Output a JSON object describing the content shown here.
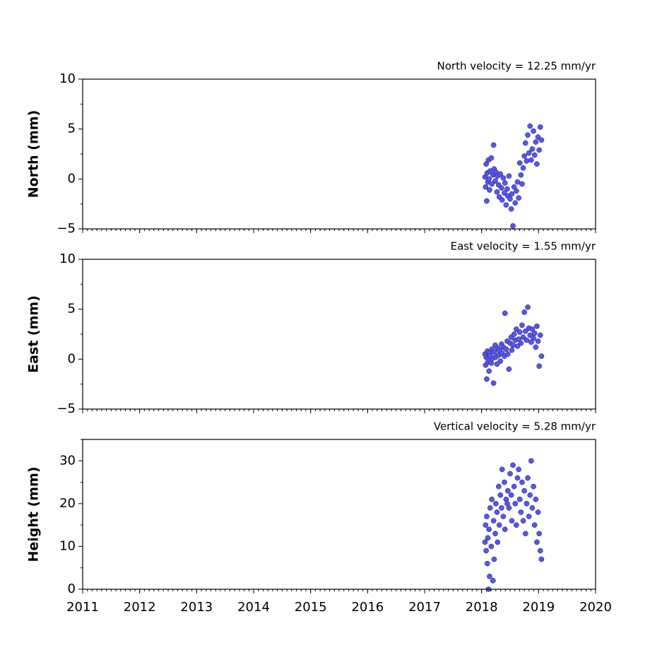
{
  "chart_data": [
    {
      "type": "scatter",
      "title": "North velocity = 12.25 mm/yr",
      "ylabel": "North (mm)",
      "color": "#5555f5",
      "x": [
        2018.06,
        2018.07,
        2018.08,
        2018.09,
        2018.1,
        2018.11,
        2018.12,
        2018.13,
        2018.14,
        2018.15,
        2018.17,
        2018.18,
        2018.2,
        2018.21,
        2018.22,
        2018.24,
        2018.25,
        2018.27,
        2018.28,
        2018.3,
        2018.31,
        2018.33,
        2018.35,
        2018.36,
        2018.38,
        2018.4,
        2018.41,
        2018.43,
        2018.45,
        2018.46,
        2018.48,
        2018.5,
        2018.52,
        2018.53,
        2018.55,
        2018.57,
        2018.59,
        2018.61,
        2018.63,
        2018.65,
        2018.67,
        2018.69,
        2018.71,
        2018.73,
        2018.75,
        2018.77,
        2018.79,
        2018.81,
        2018.83,
        2018.85,
        2018.87,
        2018.89,
        2018.91,
        2018.93,
        2018.95,
        2018.97,
        2018.99,
        2019.01,
        2019.03,
        2019.05
      ],
      "y": [
        0.2,
        -0.8,
        1.5,
        -2.2,
        0.6,
        -0.3,
        1.9,
        0.0,
        -1.1,
        0.8,
        2.1,
        -0.5,
        0.4,
        3.4,
        1.0,
        -0.2,
        0.7,
        -1.3,
        0.3,
        -0.6,
        -1.8,
        0.5,
        -0.9,
        -2.1,
        0.1,
        -1.4,
        -0.4,
        -2.6,
        -1.0,
        -1.7,
        0.3,
        -2.0,
        -3.0,
        -1.5,
        -4.7,
        -0.8,
        -2.4,
        -1.2,
        -0.3,
        -1.9,
        1.6,
        0.4,
        -0.5,
        1.1,
        2.3,
        3.6,
        1.8,
        4.4,
        2.6,
        5.3,
        1.9,
        3.0,
        4.8,
        2.4,
        3.7,
        1.5,
        4.2,
        2.9,
        5.2,
        3.9
      ],
      "xlim": [
        2011,
        2020
      ],
      "xticks": [
        2011,
        2012,
        2013,
        2014,
        2015,
        2016,
        2017,
        2018,
        2019,
        2020
      ],
      "ylim": [
        -5,
        10
      ],
      "yticks": [
        {
          "value": -5,
          "label": "−5"
        },
        0,
        5,
        10
      ]
    },
    {
      "type": "scatter",
      "title": "East velocity = 1.55 mm/yr",
      "ylabel": "East (mm)",
      "color": "#5555f5",
      "x": [
        2018.06,
        2018.07,
        2018.08,
        2018.09,
        2018.1,
        2018.11,
        2018.12,
        2018.13,
        2018.14,
        2018.15,
        2018.17,
        2018.18,
        2018.2,
        2018.21,
        2018.22,
        2018.24,
        2018.25,
        2018.27,
        2018.28,
        2018.3,
        2018.31,
        2018.33,
        2018.35,
        2018.36,
        2018.38,
        2018.4,
        2018.41,
        2018.43,
        2018.45,
        2018.46,
        2018.48,
        2018.5,
        2018.52,
        2018.53,
        2018.55,
        2018.57,
        2018.59,
        2018.61,
        2018.63,
        2018.65,
        2018.67,
        2018.69,
        2018.71,
        2018.73,
        2018.75,
        2018.77,
        2018.79,
        2018.81,
        2018.83,
        2018.85,
        2018.87,
        2018.89,
        2018.91,
        2018.93,
        2018.95,
        2018.97,
        2018.99,
        2019.01,
        2019.03,
        2019.05
      ],
      "y": [
        0.5,
        -0.6,
        0.2,
        -2.0,
        0.8,
        -0.3,
        0.0,
        -1.2,
        0.6,
        0.3,
        -0.4,
        1.0,
        0.1,
        -2.4,
        0.7,
        1.4,
        0.2,
        -0.5,
        1.1,
        0.4,
        0.9,
        -0.2,
        1.5,
        0.6,
        1.2,
        0.3,
        4.6,
        1.0,
        1.8,
        0.5,
        -1.0,
        1.6,
        2.2,
        0.9,
        1.4,
        2.5,
        1.9,
        3.0,
        1.3,
        2.0,
        2.7,
        1.6,
        3.4,
        2.2,
        4.7,
        2.8,
        1.9,
        5.2,
        3.1,
        2.4,
        1.7,
        3.0,
        2.1,
        2.6,
        1.2,
        3.3,
        1.8,
        -0.7,
        2.4,
        0.3
      ],
      "xlim": [
        2011,
        2020
      ],
      "xticks": [
        2011,
        2012,
        2013,
        2014,
        2015,
        2016,
        2017,
        2018,
        2019,
        2020
      ],
      "ylim": [
        -5,
        10
      ],
      "yticks": [
        {
          "value": -5,
          "label": "−5"
        },
        0,
        5,
        10
      ]
    },
    {
      "type": "scatter",
      "title": "Vertical velocity = 5.28 mm/yr",
      "ylabel": "Height (mm)",
      "color": "#5555f5",
      "x": [
        2018.06,
        2018.07,
        2018.08,
        2018.09,
        2018.1,
        2018.11,
        2018.12,
        2018.13,
        2018.14,
        2018.15,
        2018.17,
        2018.18,
        2018.2,
        2018.21,
        2018.22,
        2018.24,
        2018.25,
        2018.27,
        2018.28,
        2018.3,
        2018.31,
        2018.33,
        2018.35,
        2018.36,
        2018.38,
        2018.4,
        2018.41,
        2018.43,
        2018.45,
        2018.46,
        2018.48,
        2018.5,
        2018.52,
        2018.53,
        2018.55,
        2018.57,
        2018.59,
        2018.61,
        2018.63,
        2018.65,
        2018.67,
        2018.69,
        2018.71,
        2018.73,
        2018.75,
        2018.77,
        2018.79,
        2018.81,
        2018.83,
        2018.85,
        2018.87,
        2018.89,
        2018.91,
        2018.93,
        2018.95,
        2018.97,
        2018.99,
        2019.01,
        2019.03,
        2019.05
      ],
      "y": [
        11,
        15,
        9,
        17,
        6,
        12,
        0,
        14,
        3,
        19,
        10,
        21,
        2,
        16,
        7,
        13,
        20,
        18,
        11,
        24,
        15,
        22,
        19,
        28,
        17,
        25,
        14,
        21,
        20,
        23,
        19,
        27,
        22,
        16,
        29,
        24,
        20,
        15,
        26,
        28,
        21,
        18,
        25,
        16,
        23,
        13,
        20,
        26,
        17,
        22,
        30,
        19,
        24,
        15,
        21,
        11,
        18,
        13,
        9,
        7
      ],
      "xlim": [
        2011,
        2020
      ],
      "xticks": [
        2011,
        2012,
        2013,
        2014,
        2015,
        2016,
        2017,
        2018,
        2019,
        2020
      ],
      "ylim": [
        0,
        35
      ],
      "yticks": [
        0,
        10,
        20,
        30
      ]
    }
  ]
}
